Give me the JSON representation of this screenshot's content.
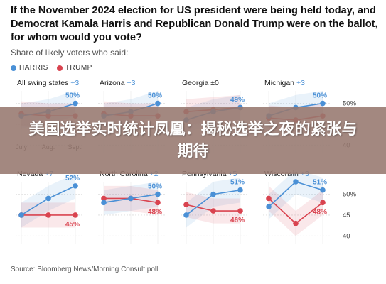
{
  "title": "If the November 2024 election for US president were being held today, and Democrat Kamala Harris and Republican Donald Trump were on the ballot, for whom would you vote?",
  "subtitle": "Share of likely voters who said:",
  "legend": [
    {
      "label": "HARRIS",
      "color": "#4a90d6"
    },
    {
      "label": "TRUMP",
      "color": "#d9434f"
    }
  ],
  "source": "Source: Bloomberg News/Morning Consult poll",
  "banner": "美国选举实时统计凤凰：揭秘选举之夜的紧张与期待",
  "chart_data": {
    "type": "line",
    "x": [
      "July",
      "Aug.",
      "Sept."
    ],
    "ylim": [
      38,
      53
    ],
    "yticks": [
      "50%",
      "45",
      "40"
    ],
    "colors": {
      "harris": "#4a90d6",
      "trump": "#d9434f"
    },
    "panels": [
      {
        "name": "All swing states",
        "margin": "+3",
        "harris": [
          47,
          48,
          50
        ],
        "trump": [
          47.5,
          47,
          47
        ],
        "label_harris": "50%",
        "label_trump": ""
      },
      {
        "name": "Arizona",
        "margin": "+3",
        "harris": [
          47,
          48,
          50
        ],
        "trump": [
          47.5,
          47,
          47
        ],
        "label_harris": "50%",
        "label_trump": ""
      },
      {
        "name": "Georgia",
        "margin": "±0",
        "harris": [
          46,
          48,
          49
        ],
        "trump": [
          48,
          48.5,
          49
        ],
        "label_harris": "49%",
        "label_trump": ""
      },
      {
        "name": "Michigan",
        "margin": "+3",
        "harris": [
          47,
          49,
          50
        ],
        "trump": [
          46.5,
          46,
          47
        ],
        "label_harris": "50%",
        "label_trump": ""
      },
      {
        "name": "Nevada",
        "margin": "+7",
        "harris": [
          45,
          49,
          52
        ],
        "trump": [
          45,
          45,
          45
        ],
        "label_harris": "52%",
        "label_trump": "45%"
      },
      {
        "name": "North Carolina",
        "margin": "+2",
        "harris": [
          48,
          49,
          50
        ],
        "trump": [
          49,
          49,
          48
        ],
        "label_harris": "50%",
        "label_trump": "48%"
      },
      {
        "name": "Pennsylvania",
        "margin": "+5",
        "harris": [
          45,
          50,
          51
        ],
        "trump": [
          47.5,
          46,
          46
        ],
        "label_harris": "51%",
        "label_trump": "46%"
      },
      {
        "name": "Wisconsin",
        "margin": "+3",
        "harris": [
          47,
          53,
          51
        ],
        "trump": [
          49,
          43,
          48
        ],
        "label_harris": "51%",
        "label_trump": "48%"
      }
    ]
  }
}
